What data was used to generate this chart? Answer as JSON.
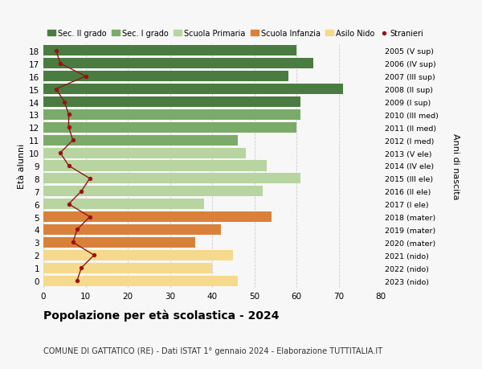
{
  "ages": [
    18,
    17,
    16,
    15,
    14,
    13,
    12,
    11,
    10,
    9,
    8,
    7,
    6,
    5,
    4,
    3,
    2,
    1,
    0
  ],
  "bar_values": [
    60,
    64,
    58,
    71,
    61,
    61,
    60,
    46,
    48,
    53,
    61,
    52,
    38,
    54,
    42,
    36,
    45,
    40,
    46
  ],
  "bar_colors": [
    "#4a7c41",
    "#4a7c41",
    "#4a7c41",
    "#4a7c41",
    "#4a7c41",
    "#7aab68",
    "#7aab68",
    "#7aab68",
    "#b8d4a0",
    "#b8d4a0",
    "#b8d4a0",
    "#b8d4a0",
    "#b8d4a0",
    "#d9813a",
    "#d9813a",
    "#d9813a",
    "#f5d98c",
    "#f5d98c",
    "#f5d98c"
  ],
  "stranieri_values": [
    3,
    4,
    10,
    3,
    5,
    6,
    6,
    7,
    4,
    6,
    11,
    9,
    6,
    11,
    8,
    7,
    12,
    9,
    8
  ],
  "right_labels": [
    "2005 (V sup)",
    "2006 (IV sup)",
    "2007 (III sup)",
    "2008 (II sup)",
    "2009 (I sup)",
    "2010 (III med)",
    "2011 (II med)",
    "2012 (I med)",
    "2013 (V ele)",
    "2014 (IV ele)",
    "2015 (III ele)",
    "2016 (II ele)",
    "2017 (I ele)",
    "2018 (mater)",
    "2019 (mater)",
    "2020 (mater)",
    "2021 (nido)",
    "2022 (nido)",
    "2023 (nido)"
  ],
  "legend_labels": [
    "Sec. II grado",
    "Sec. I grado",
    "Scuola Primaria",
    "Scuola Infanzia",
    "Asilo Nido",
    "Stranieri"
  ],
  "legend_colors": [
    "#4a7c41",
    "#7aab68",
    "#b8d4a0",
    "#d9813a",
    "#f5d98c",
    "#a01010"
  ],
  "xlabel_values": [
    0,
    10,
    20,
    30,
    40,
    50,
    60,
    70,
    80
  ],
  "ylabel_left": "Età alunni",
  "ylabel_right": "Anni di nascita",
  "title": "Popolazione per età scolastica - 2024",
  "subtitle": "COMUNE DI GATTATICO (RE) - Dati ISTAT 1° gennaio 2024 - Elaborazione TUTTITALIA.IT",
  "background_color": "#f7f7f7",
  "grid_color": "#cccccc",
  "stranieri_color": "#a01010",
  "stranieri_line_color": "#8b1a1a",
  "bar_height": 0.82
}
